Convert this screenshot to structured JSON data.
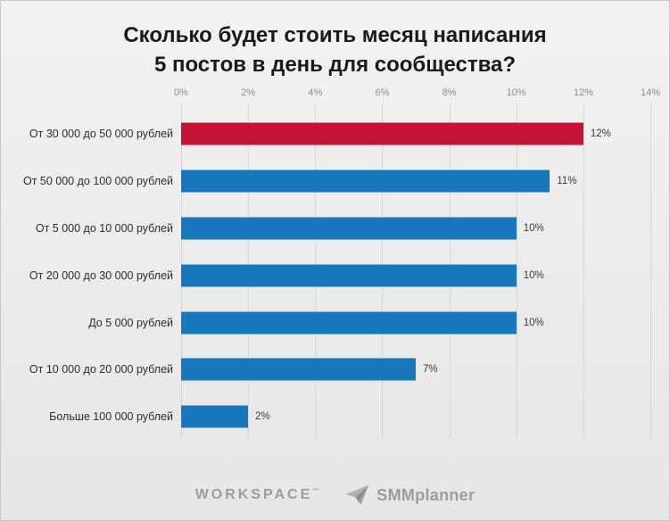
{
  "chart_data": {
    "type": "bar",
    "orientation": "horizontal",
    "title_lines": [
      "Сколько будет стоить месяц написания",
      "5 постов в день для сообщества?"
    ],
    "categories": [
      "От 30 000 до 50 000 рублей",
      "От 50 000 до 100 000 рублей",
      "От 5 000 до 10 000 рублей",
      "От 20 000 до 30 000 рублей",
      "До 5 000 рублей",
      "От 10 000 до 20 000 рублей",
      "Больше 100 000 рублей"
    ],
    "values": [
      12,
      11,
      10,
      10,
      10,
      7,
      2
    ],
    "value_labels": [
      "12%",
      "11%",
      "10%",
      "10%",
      "10%",
      "7%",
      "2%"
    ],
    "bar_colors": [
      "#c51235",
      "#1878be",
      "#1878be",
      "#1878be",
      "#1878be",
      "#1878be",
      "#1878be"
    ],
    "highlight_color": "#c51235",
    "default_bar_color": "#1878be",
    "x_ticks": [
      "0%",
      "2%",
      "4%",
      "6%",
      "8%",
      "10%",
      "12%",
      "14%"
    ],
    "xlim": [
      0,
      14
    ],
    "grid": true,
    "legend": "none",
    "xlabel": "",
    "ylabel": ""
  },
  "footer": {
    "workspace": "WORKSPACE",
    "workspace_tm": "™",
    "smmplanner": "SMMplanner",
    "logo_color": "#9c9c9c"
  }
}
